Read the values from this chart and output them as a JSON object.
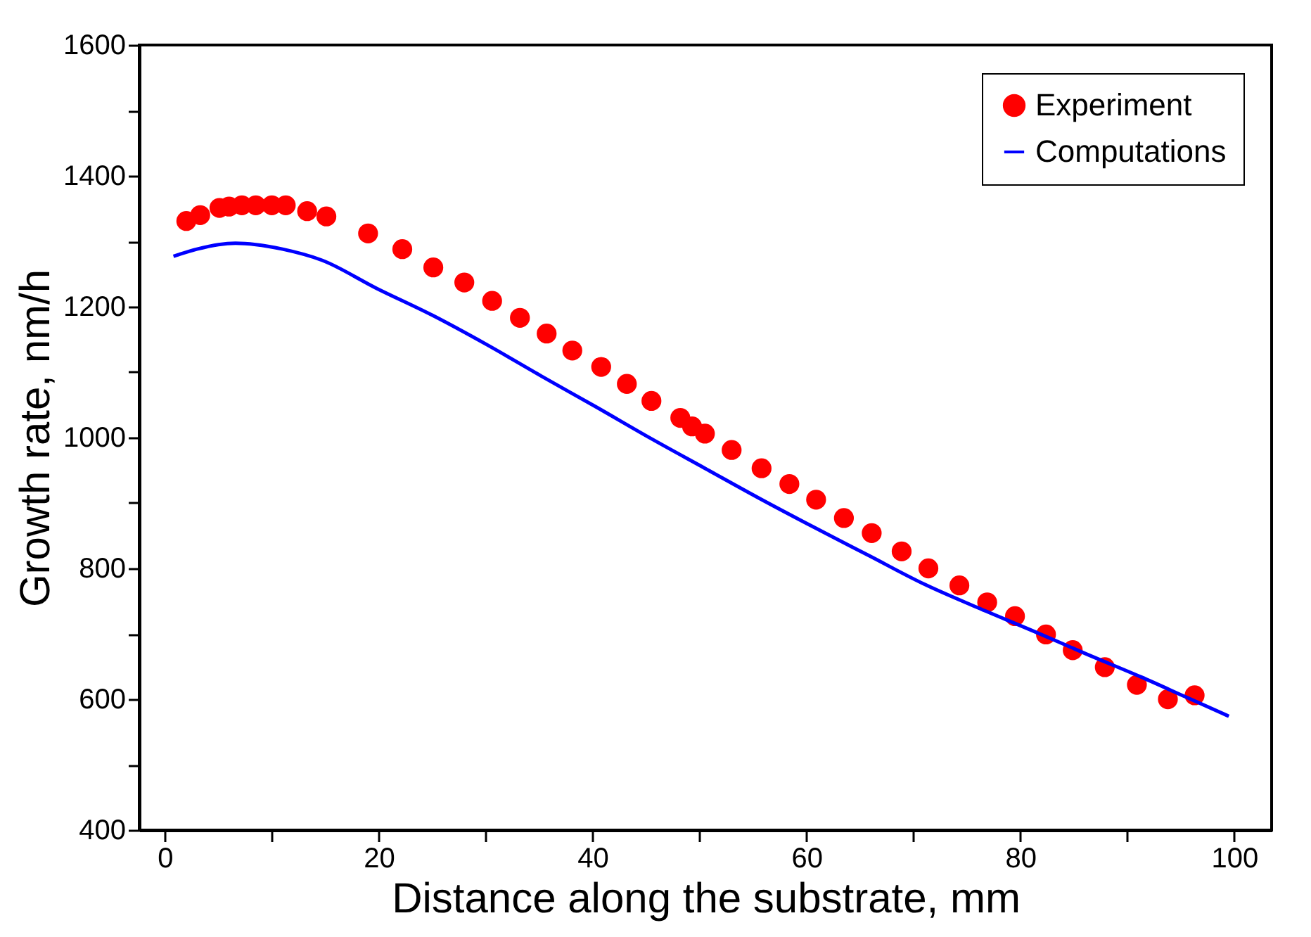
{
  "chart_data": {
    "type": "scatter",
    "xlabel": "Distance along the substrate, mm",
    "ylabel": "Growth rate, nm/h",
    "xlim": [
      -2.4,
      103.5
    ],
    "ylim": [
      400,
      1600
    ],
    "xticks": [
      0,
      {
        "value": 10,
        "label": null
      },
      20,
      {
        "value": 30,
        "label": null
      },
      40,
      {
        "value": 50,
        "label": null
      },
      60,
      {
        "value": 70,
        "label": null
      },
      80,
      {
        "value": 90,
        "label": null
      },
      100
    ],
    "yticks": [
      400,
      {
        "value": 500,
        "label": null
      },
      600,
      {
        "value": 700,
        "label": null
      },
      800,
      {
        "value": 900,
        "label": null
      },
      1000,
      {
        "value": 1100,
        "label": null
      },
      1200,
      {
        "value": 1300,
        "label": null
      },
      1400,
      {
        "value": 1500,
        "label": null
      },
      1600
    ],
    "grid": false,
    "legend": "top right",
    "series": [
      {
        "name": "Experiment",
        "marker": "circle",
        "color": "#ff0000",
        "x": [
          2.0,
          3.3,
          5.1,
          6.0,
          7.2,
          8.5,
          10.0,
          11.3,
          13.3,
          15.1,
          19.0,
          22.2,
          25.1,
          28.0,
          30.6,
          33.2,
          35.7,
          38.1,
          40.8,
          43.2,
          45.5,
          48.2,
          49.3,
          50.5,
          53.0,
          55.8,
          58.4,
          60.9,
          63.5,
          66.1,
          68.9,
          71.4,
          74.3,
          76.9,
          79.5,
          82.4,
          84.9,
          87.9,
          90.9,
          93.8,
          96.3
        ],
        "values": [
          1331,
          1340,
          1351,
          1353,
          1355,
          1355,
          1355,
          1355,
          1346,
          1338,
          1312,
          1288,
          1260,
          1237,
          1209,
          1183,
          1159,
          1133,
          1108,
          1082,
          1056,
          1030,
          1017,
          1006,
          981,
          953,
          929,
          905,
          877,
          854,
          826,
          800,
          774,
          748,
          727,
          699,
          675,
          649,
          622,
          600,
          606
        ]
      },
      {
        "name": "Computations",
        "type": "line",
        "line_style": "solid",
        "color": "#0000ff",
        "x": [
          0.8,
          3.0,
          5.0,
          6.6,
          8.5,
          11.0,
          14.7,
          19.8,
          25.0,
          30.1,
          35.2,
          40.3,
          45.4,
          50.5,
          55.6,
          60.8,
          65.9,
          71.0,
          76.0,
          81.1,
          86.2,
          91.3,
          95.4,
          99.5
        ],
        "values": [
          1277,
          1288,
          1295,
          1297,
          1295,
          1288,
          1271,
          1228,
          1187,
          1142,
          1094,
          1047,
          999,
          953,
          907,
          862,
          819,
          776,
          740,
          705,
          669,
          634,
          604,
          574
        ]
      }
    ]
  }
}
